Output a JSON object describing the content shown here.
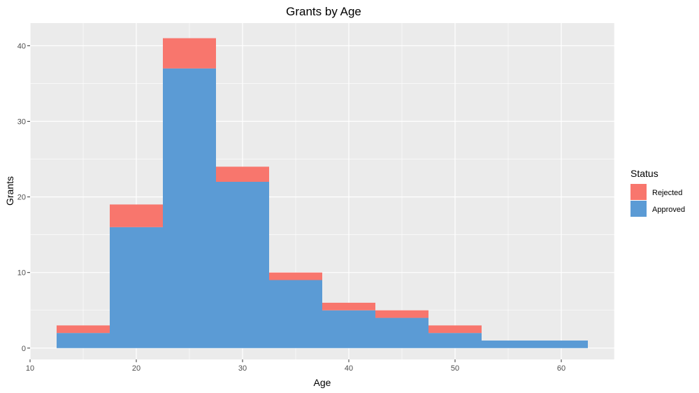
{
  "chart_data": {
    "type": "bar",
    "subtype": "stacked-histogram",
    "title": "Grants by Age",
    "xlabel": "Age",
    "ylabel": "Grants",
    "xlim": [
      10,
      65
    ],
    "ylim": [
      -1.5,
      43
    ],
    "x_ticks": [
      10,
      20,
      30,
      40,
      50,
      60
    ],
    "y_ticks": [
      0,
      10,
      20,
      30,
      40
    ],
    "bins": [
      {
        "from": 12.5,
        "to": 17.5
      },
      {
        "from": 17.5,
        "to": 22.5
      },
      {
        "from": 22.5,
        "to": 27.5
      },
      {
        "from": 27.5,
        "to": 32.5
      },
      {
        "from": 32.5,
        "to": 37.5
      },
      {
        "from": 37.5,
        "to": 42.5
      },
      {
        "from": 42.5,
        "to": 47.5
      },
      {
        "from": 47.5,
        "to": 52.5
      },
      {
        "from": 52.5,
        "to": 57.5
      },
      {
        "from": 57.5,
        "to": 62.5
      }
    ],
    "series": [
      {
        "name": "Approved",
        "color": "#5B9BD5",
        "values": [
          2,
          16,
          37,
          22,
          9,
          5,
          4,
          2,
          1,
          1
        ]
      },
      {
        "name": "Rejected",
        "color": "#F8766D",
        "values": [
          1,
          3,
          4,
          2,
          1,
          1,
          1,
          1,
          0,
          0
        ]
      }
    ],
    "legend": {
      "title": "Status",
      "placement": "right",
      "order": [
        "Rejected",
        "Approved"
      ]
    },
    "grid": true,
    "panel_background": "#EBEBEB",
    "grid_color": "#FFFFFF"
  }
}
